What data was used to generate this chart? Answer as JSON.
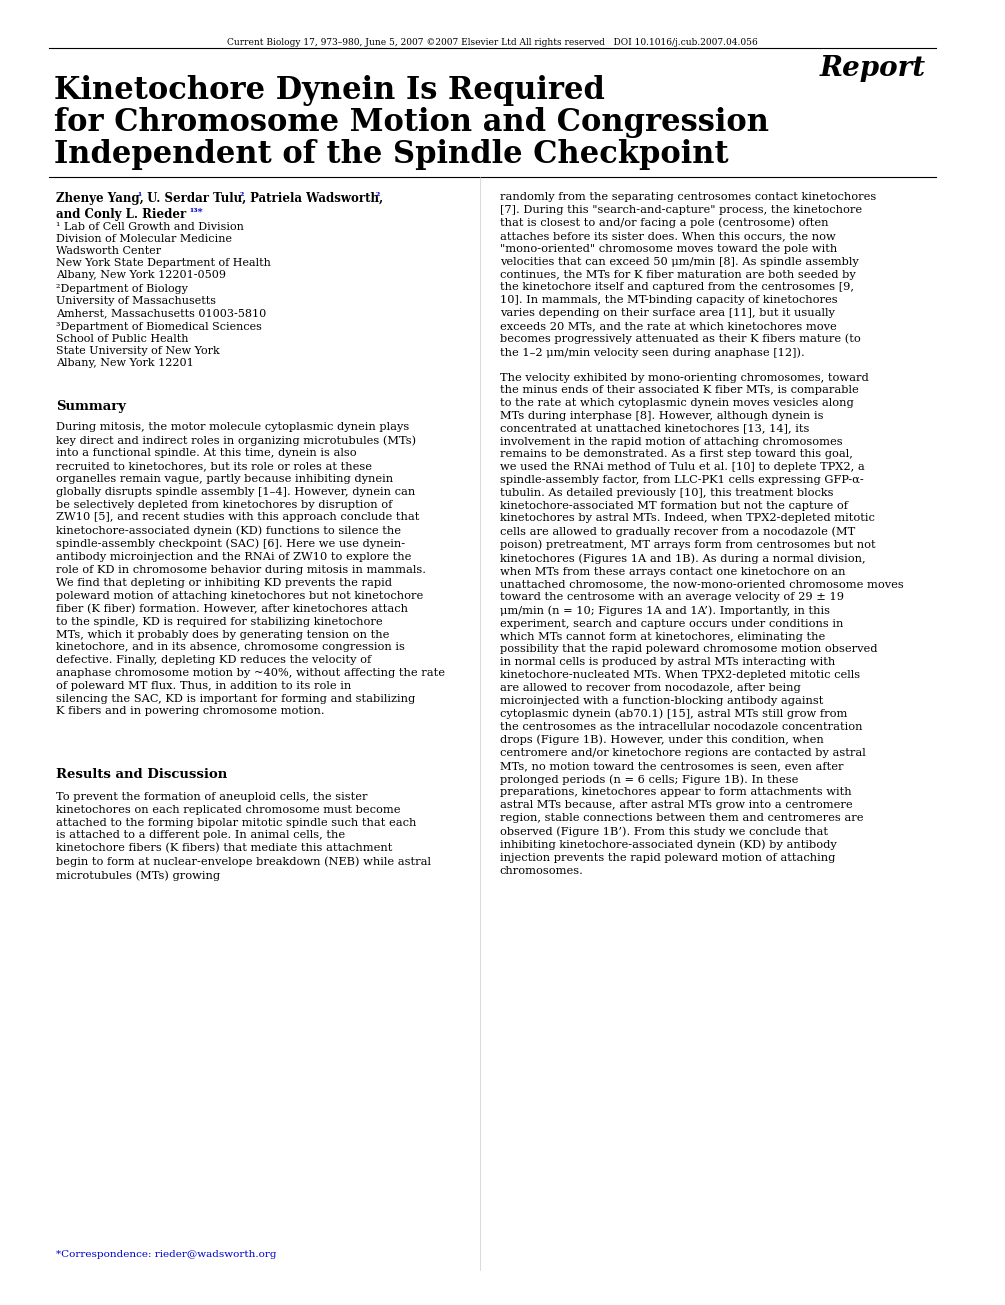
{
  "bg_color": "#ffffff",
  "header_text": "Current Biology 17, 973–980, June 5, 2007 ©2007 Elsevier Ltd All rights reserved   DOI 10.1016/j.cub.2007.04.056",
  "report_label": "Report",
  "title_line1": "Kinetochore Dynein Is Required",
  "title_line2": "for Chromosome Motion and Congression",
  "title_line3": "Independent of the Spindle Checkpoint",
  "authors": "Zhenye Yang,¹ U. Serdar Tulu,² Patriela Wadsworth,²\nand Conly L. Rieder¹³*",
  "affil1": "¹ Lab of Cell Growth and Division\nDivision of Molecular Medicine\nWadsworth Center\nNew York State Department of Health\nAlbany, New York 12201-0509",
  "affil2": "²Department of Biology\nUniversity of Massachusetts\nAmherst, Massachusetts 01003-5810",
  "affil3": "³Department of Biomedical Sciences\nSchool of Public Health\nState University of New York\nAlbany, New York 12201",
  "summary_title": "Summary",
  "summary_text": "During mitosis, the motor molecule cytoplasmic dynein plays key direct and indirect roles in organizing microtubules (MTs) into a functional spindle. At this time, dynein is also recruited to kinetochores, but its role or roles at these organelles remain vague, partly because inhibiting dynein globally disrupts spindle assembly [1–4]. However, dynein can be selectively depleted from kinetochores by disruption of ZW10 [5], and recent studies with this approach conclude that kinetochore-associated dynein (KD) functions to silence the spindle-assembly checkpoint (SAC) [6]. Here we use dynein-antibody microinjection and the RNAi of ZW10 to explore the role of KD in chromosome behavior during mitosis in mammals. We find that depleting or inhibiting KD prevents the rapid poleward motion of attaching kinetochores but not kinetochore fiber (K fiber) formation. However, after kinetochores attach to the spindle, KD is required for stabilizing kinetochore MTs, which it probably does by generating tension on the kinetochore, and in its absence, chromosome congression is defective. Finally, depleting KD reduces the velocity of anaphase chromosome motion by ~40%, without affecting the rate of poleward MT flux. Thus, in addition to its role in silencing the SAC, KD is important for forming and stabilizing K fibers and in powering chromosome motion.",
  "results_title": "Results and Discussion",
  "results_text": "To prevent the formation of aneuploid cells, the sister kinetochores on each replicated chromosome must become attached to the forming bipolar mitotic spindle such that each is attached to a different pole. In animal cells, the kinetochore fibers (K fibers) that mediate this attachment begin to form at nuclear-envelope breakdown (NEB) while astral microtubules (MTs) growing",
  "right_col_text": "randomly from the separating centrosomes contact kinetochores [7]. During this \"search-and-capture\" process, the kinetochore that is closest to and/or facing a pole (centrosome) often attaches before its sister does. When this occurs, the now \"mono-oriented\" chromosome moves toward the pole with velocities that can exceed 50 μm/min [8]. As spindle assembly continues, the MTs for K fiber maturation are both seeded by the kinetochore itself and captured from the centrosomes [9, 10]. In mammals, the MT-binding capacity of kinetochores varies depending on their surface area [11], but it usually exceeds 20 MTs, and the rate at which kinetochores move becomes progressively attenuated as their K fibers mature (to the 1–2 μm/min velocity seen during anaphase [12]).\n\nThe velocity exhibited by mono-orienting chromosomes, toward the minus ends of their associated K fiber MTs, is comparable to the rate at which cytoplasmic dynein moves vesicles along MTs during interphase [8]. However, although dynein is concentrated at unattached kinetochores [13, 14], its involvement in the rapid motion of attaching chromosomes remains to be demonstrated. As a first step toward this goal, we used the RNAi method of Tulu et al. [10] to deplete TPX2, a spindle-assembly factor, from LLC-PK1 cells expressing GFP-α-tubulin. As detailed previously [10], this treatment blocks kinetochore-associated MT formation but not the capture of kinetochores by astral MTs. Indeed, when TPX2-depleted mitotic cells are allowed to gradually recover from a nocodazole (MT poison) pretreatment, MT arrays form from centrosomes but not kinetochores (Figures 1A and 1B). As during a normal division, when MTs from these arrays contact one kinetochore on an unattached chromosome, the now-mono-oriented chromosome moves toward the centrosome with an average velocity of 29 ± 19 μm/min (n = 10; Figures 1A and 1A’). Importantly, in this experiment, search and capture occurs under conditions in which MTs cannot form at kinetochores, eliminating the possibility that the rapid poleward chromosome motion observed in normal cells is produced by astral MTs interacting with kinetochore-nucleated MTs. When TPX2-depleted mitotic cells are allowed to recover from nocodazole, after being microinjected with a function-blocking antibody against cytoplasmic dynein (ab70.1) [15], astral MTs still grow from the centrosomes as the intracellular nocodazole concentration drops (Figure 1B). However, under this condition, when centromere and/or kinetochore regions are contacted by astral MTs, no motion toward the centrosomes is seen, even after prolonged periods (n = 6 cells; Figure 1B). In these preparations, kinetochores appear to form attachments with astral MTs because, after astral MTs grow into a centromere region, stable connections between them and centromeres are observed (Figure 1B’). From this study we conclude that inhibiting kinetochore-associated dynein (KD) by antibody injection prevents the rapid poleward motion of attaching chromosomes.",
  "correspondence": "*Correspondence: rieder@wadsworth.org",
  "link_color": "#0000cc",
  "text_color": "#000000",
  "title_color": "#000000"
}
